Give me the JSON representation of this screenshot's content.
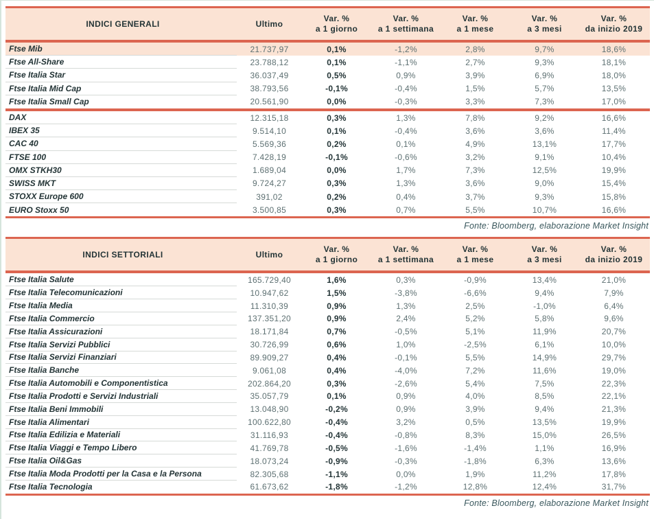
{
  "colors": {
    "accent_line": "#dc6550",
    "header_band_bg": "#fbe3d4",
    "highlight_row_bg": "#fbe3d4",
    "text_dark": "#233436",
    "text_muted": "#5d7072"
  },
  "headers": {
    "ultimo": "Ultimo",
    "var_cols": [
      {
        "l1": "Var. %",
        "l2": "a 1 giorno"
      },
      {
        "l1": "Var. %",
        "l2": "a 1 settimana"
      },
      {
        "l1": "Var. %",
        "l2": "a 1 mese"
      },
      {
        "l1": "Var. %",
        "l2": "a 3 mesi"
      },
      {
        "l1": "Var. %",
        "l2": "da inizio 2019"
      }
    ]
  },
  "source_note": "Fonte: Bloomberg, elaborazione Market Insight",
  "tables": [
    {
      "title": "INDICI GENERALI",
      "slug": "general-indices-table",
      "sections": [
        {
          "rows": [
            {
              "name": "Ftse Mib",
              "ultimo": "21.737,97",
              "d1": "0,1%",
              "w1": "-1,2%",
              "m1": "2,8%",
              "m3": "9,7%",
              "ytd": "18,6%",
              "highlight": true
            },
            {
              "name": "Ftse All-Share",
              "ultimo": "23.788,12",
              "d1": "0,1%",
              "w1": "-1,1%",
              "m1": "2,7%",
              "m3": "9,3%",
              "ytd": "18,1%"
            },
            {
              "name": "Ftse Italia Star",
              "ultimo": "36.037,49",
              "d1": "0,5%",
              "w1": "0,9%",
              "m1": "3,9%",
              "m3": "6,9%",
              "ytd": "18,0%"
            },
            {
              "name": "Ftse Italia Mid Cap",
              "ultimo": "38.793,56",
              "d1": "-0,1%",
              "w1": "-0,4%",
              "m1": "1,5%",
              "m3": "5,7%",
              "ytd": "13,5%"
            },
            {
              "name": "Ftse Italia Small Cap",
              "ultimo": "20.561,90",
              "d1": "0,0%",
              "w1": "-0,3%",
              "m1": "3,3%",
              "m3": "7,3%",
              "ytd": "17,0%"
            }
          ]
        },
        {
          "rows": [
            {
              "name": "DAX",
              "ultimo": "12.315,18",
              "d1": "0,3%",
              "w1": "1,3%",
              "m1": "7,8%",
              "m3": "9,2%",
              "ytd": "16,6%"
            },
            {
              "name": "IBEX 35",
              "ultimo": "9.514,10",
              "d1": "0,1%",
              "w1": "-0,4%",
              "m1": "3,6%",
              "m3": "3,6%",
              "ytd": "11,4%"
            },
            {
              "name": "CAC 40",
              "ultimo": "5.569,36",
              "d1": "0,2%",
              "w1": "0,1%",
              "m1": "4,9%",
              "m3": "13,1%",
              "ytd": "17,7%"
            },
            {
              "name": "FTSE 100",
              "ultimo": "7.428,19",
              "d1": "-0,1%",
              "w1": "-0,6%",
              "m1": "3,2%",
              "m3": "9,1%",
              "ytd": "10,4%"
            },
            {
              "name": "OMX STKH30",
              "ultimo": "1.689,04",
              "d1": "0,0%",
              "w1": "1,7%",
              "m1": "7,3%",
              "m3": "12,5%",
              "ytd": "19,9%"
            },
            {
              "name": "SWISS MKT",
              "ultimo": "9.724,27",
              "d1": "0,3%",
              "w1": "1,3%",
              "m1": "3,6%",
              "m3": "9,0%",
              "ytd": "15,4%"
            },
            {
              "name": "STOXX Europe 600",
              "ultimo": "391,02",
              "d1": "0,2%",
              "w1": "0,4%",
              "m1": "3,7%",
              "m3": "9,3%",
              "ytd": "15,8%"
            },
            {
              "name": "EURO Stoxx 50",
              "ultimo": "3.500,85",
              "d1": "0,3%",
              "w1": "0,7%",
              "m1": "5,5%",
              "m3": "10,7%",
              "ytd": "16,6%"
            }
          ]
        }
      ]
    },
    {
      "title": "INDICI SETTORIALI",
      "slug": "sector-indices-table",
      "sections": [
        {
          "rows": [
            {
              "name": "Ftse Italia Salute",
              "ultimo": "165.729,40",
              "d1": "1,6%",
              "w1": "0,3%",
              "m1": "-0,9%",
              "m3": "13,4%",
              "ytd": "21,0%"
            },
            {
              "name": "Ftse Italia Telecomunicazioni",
              "ultimo": "10.947,62",
              "d1": "1,5%",
              "w1": "-3,8%",
              "m1": "-6,6%",
              "m3": "9,4%",
              "ytd": "7,9%"
            },
            {
              "name": "Ftse Italia Media",
              "ultimo": "11.310,39",
              "d1": "0,9%",
              "w1": "1,3%",
              "m1": "2,5%",
              "m3": "-1,0%",
              "ytd": "6,4%"
            },
            {
              "name": "Ftse Italia Commercio",
              "ultimo": "137.351,20",
              "d1": "0,9%",
              "w1": "2,4%",
              "m1": "5,2%",
              "m3": "5,8%",
              "ytd": "9,6%"
            },
            {
              "name": "Ftse Italia Assicurazioni",
              "ultimo": "18.171,84",
              "d1": "0,7%",
              "w1": "-0,5%",
              "m1": "5,1%",
              "m3": "11,9%",
              "ytd": "20,7%"
            },
            {
              "name": "Ftse Italia Servizi Pubblici",
              "ultimo": "30.726,99",
              "d1": "0,6%",
              "w1": "1,0%",
              "m1": "-2,5%",
              "m3": "6,1%",
              "ytd": "10,0%"
            },
            {
              "name": "Ftse Italia Servizi Finanziari",
              "ultimo": "89.909,27",
              "d1": "0,4%",
              "w1": "-0,1%",
              "m1": "5,5%",
              "m3": "14,9%",
              "ytd": "29,7%"
            },
            {
              "name": "Ftse Italia Banche",
              "ultimo": "9.061,08",
              "d1": "0,4%",
              "w1": "-4,0%",
              "m1": "7,2%",
              "m3": "11,6%",
              "ytd": "19,0%"
            },
            {
              "name": "Ftse Italia Automobili e Componentistica",
              "ultimo": "202.864,20",
              "d1": "0,3%",
              "w1": "-2,6%",
              "m1": "5,4%",
              "m3": "7,5%",
              "ytd": "22,3%"
            },
            {
              "name": "Ftse Italia Prodotti e Servizi Industriali",
              "ultimo": "35.057,79",
              "d1": "0,1%",
              "w1": "0,9%",
              "m1": "4,0%",
              "m3": "8,5%",
              "ytd": "22,1%"
            },
            {
              "name": "Ftse Italia Beni Immobili",
              "ultimo": "13.048,90",
              "d1": "-0,2%",
              "w1": "0,9%",
              "m1": "3,9%",
              "m3": "9,4%",
              "ytd": "21,3%"
            },
            {
              "name": "Ftse Italia Alimentari",
              "ultimo": "100.622,80",
              "d1": "-0,4%",
              "w1": "3,2%",
              "m1": "0,5%",
              "m3": "13,5%",
              "ytd": "19,9%"
            },
            {
              "name": "Ftse Italia Edilizia e Materiali",
              "ultimo": "31.116,93",
              "d1": "-0,4%",
              "w1": "-0,8%",
              "m1": "8,3%",
              "m3": "15,0%",
              "ytd": "26,5%"
            },
            {
              "name": "Ftse Italia Viaggi e Tempo Libero",
              "ultimo": "41.769,78",
              "d1": "-0,5%",
              "w1": "-1,6%",
              "m1": "-1,4%",
              "m3": "1,1%",
              "ytd": "16,9%"
            },
            {
              "name": "Ftse Italia Oil&Gas",
              "ultimo": "18.073,24",
              "d1": "-0,9%",
              "w1": "-0,3%",
              "m1": "-1,8%",
              "m3": "6,3%",
              "ytd": "13,6%"
            },
            {
              "name": "Ftse Italia Moda Prodotti per la Casa e la Persona",
              "ultimo": "82.305,68",
              "d1": "-1,1%",
              "w1": "0,0%",
              "m1": "1,9%",
              "m3": "11,2%",
              "ytd": "17,8%"
            },
            {
              "name": "Ftse Italia Tecnologia",
              "ultimo": "61.673,62",
              "d1": "-1,8%",
              "w1": "-1,2%",
              "m1": "12,8%",
              "m3": "12,4%",
              "ytd": "31,7%"
            }
          ]
        }
      ]
    }
  ]
}
